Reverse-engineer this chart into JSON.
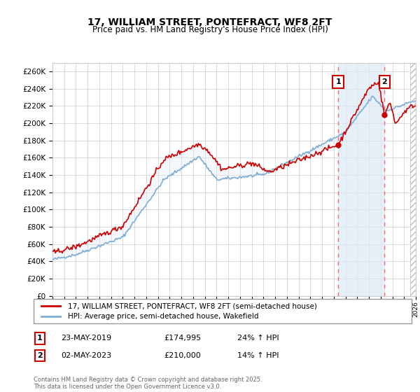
{
  "title": "17, WILLIAM STREET, PONTEFRACT, WF8 2FT",
  "subtitle": "Price paid vs. HM Land Registry's House Price Index (HPI)",
  "ylim": [
    0,
    270000
  ],
  "yticks": [
    0,
    20000,
    40000,
    60000,
    80000,
    100000,
    120000,
    140000,
    160000,
    180000,
    200000,
    220000,
    240000,
    260000
  ],
  "year_start": 1995,
  "year_end": 2026,
  "legend_line1": "17, WILLIAM STREET, PONTEFRACT, WF8 2FT (semi-detached house)",
  "legend_line2": "HPI: Average price, semi-detached house, Wakefield",
  "annotation1_label": "1",
  "annotation1_date": "23-MAY-2019",
  "annotation1_price": "£174,995",
  "annotation1_hpi": "24% ↑ HPI",
  "annotation1_year": 2019.38,
  "annotation1_value": 174995,
  "annotation2_label": "2",
  "annotation2_date": "02-MAY-2023",
  "annotation2_price": "£210,000",
  "annotation2_hpi": "14% ↑ HPI",
  "annotation2_year": 2023.33,
  "annotation2_value": 210000,
  "red_line_color": "#cc0000",
  "blue_line_color": "#7eaed4",
  "dot_color": "#cc0000",
  "background_color": "#ffffff",
  "plot_bg_color": "#ffffff",
  "grid_color": "#cccccc",
  "shade_between_color": "#dbeaf7",
  "hatch_color": "#cccccc",
  "footer_text": "Contains HM Land Registry data © Crown copyright and database right 2025.\nThis data is licensed under the Open Government Licence v3.0."
}
